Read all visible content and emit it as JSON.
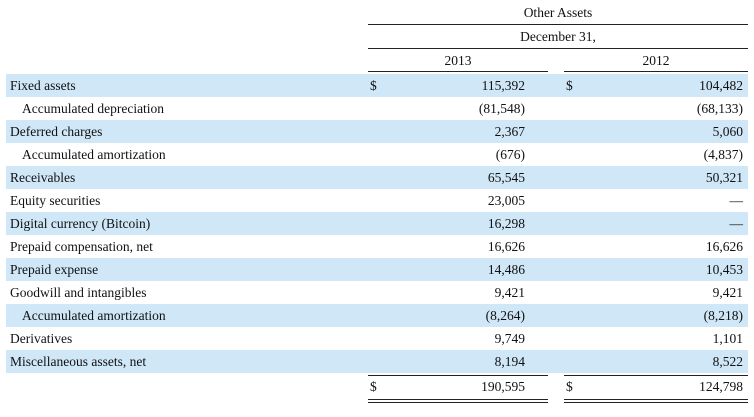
{
  "header": {
    "title": "Other Assets",
    "subtitle": "December 31,",
    "col_2013": "2013",
    "col_2012": "2012"
  },
  "currency_symbol": "$",
  "rows": [
    {
      "label": "Fixed assets",
      "indent": false,
      "v2013": "115,392",
      "v2012": "104,482",
      "dollar": true
    },
    {
      "label": "Accumulated depreciation",
      "indent": true,
      "v2013": "(81,548)",
      "v2012": "(68,133)"
    },
    {
      "label": "Deferred charges",
      "indent": false,
      "v2013": "2,367",
      "v2012": "5,060"
    },
    {
      "label": "Accumulated amortization",
      "indent": true,
      "v2013": "(676)",
      "v2012": "(4,837)"
    },
    {
      "label": "Receivables",
      "indent": false,
      "v2013": "65,545",
      "v2012": "50,321"
    },
    {
      "label": "Equity securities",
      "indent": false,
      "v2013": "23,005",
      "v2012": "—"
    },
    {
      "label": "Digital currency (Bitcoin)",
      "indent": false,
      "v2013": "16,298",
      "v2012": "—"
    },
    {
      "label": "Prepaid compensation, net",
      "indent": false,
      "v2013": "16,626",
      "v2012": "16,626"
    },
    {
      "label": "Prepaid expense",
      "indent": false,
      "v2013": "14,486",
      "v2012": "10,453"
    },
    {
      "label": "Goodwill and intangibles",
      "indent": false,
      "v2013": "9,421",
      "v2012": "9,421"
    },
    {
      "label": "Accumulated amortization",
      "indent": true,
      "v2013": "(8,264)",
      "v2012": "(8,218)"
    },
    {
      "label": "Derivatives",
      "indent": false,
      "v2013": "9,749",
      "v2012": "1,101"
    },
    {
      "label": "Miscellaneous assets, net",
      "indent": false,
      "v2013": "8,194",
      "v2012": "8,522"
    }
  ],
  "total": {
    "v2013": "190,595",
    "v2012": "124,798"
  }
}
